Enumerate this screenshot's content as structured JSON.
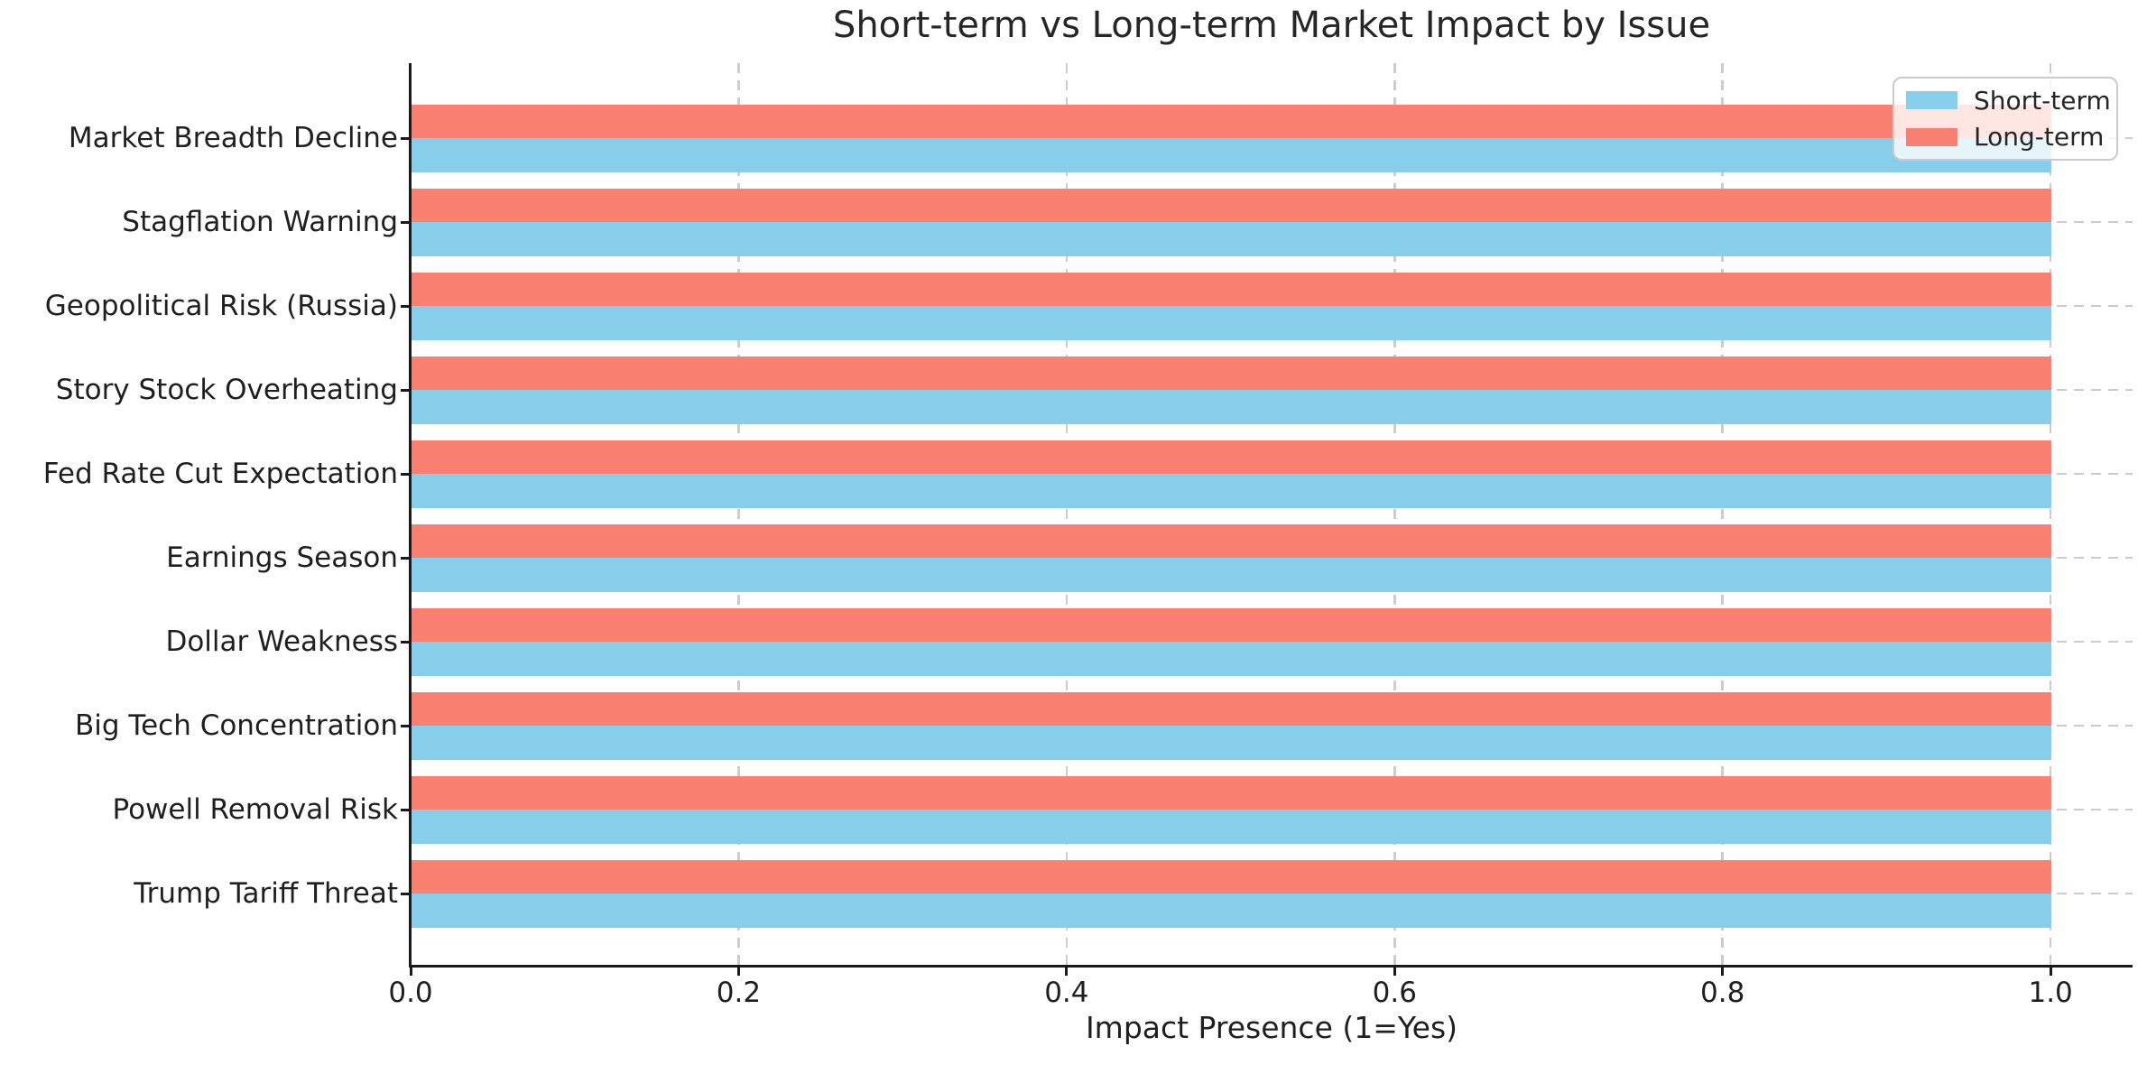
{
  "chart_data": {
    "type": "bar",
    "orientation": "horizontal",
    "title": "Short-term vs Long-term Market Impact by Issue",
    "xlabel": "Impact Presence (1=Yes)",
    "categories_top_to_bottom": [
      "Market Breadth Decline",
      "Stagflation Warning",
      "Geopolitical Risk (Russia)",
      "Story Stock Overheating",
      "Fed Rate Cut Expectation",
      "Earnings Season",
      "Dollar Weakness",
      "Big Tech Concentration",
      "Powell Removal Risk",
      "Trump Tariff Threat"
    ],
    "series": [
      {
        "name": "Short-term",
        "color": "#87CEEB",
        "values": [
          1.0,
          1.0,
          1.0,
          1.0,
          1.0,
          1.0,
          1.0,
          1.0,
          1.0,
          1.0
        ]
      },
      {
        "name": "Long-term",
        "color": "#FA8072",
        "values": [
          1.0,
          1.0,
          1.0,
          1.0,
          1.0,
          1.0,
          1.0,
          1.0,
          1.0,
          1.0
        ]
      }
    ],
    "x_ticks": [
      {
        "value": 0.0,
        "label": "0.0"
      },
      {
        "value": 0.2,
        "label": "0.2"
      },
      {
        "value": 0.4,
        "label": "0.4"
      },
      {
        "value": 0.6,
        "label": "0.6"
      },
      {
        "value": 0.8,
        "label": "0.8"
      },
      {
        "value": 1.0,
        "label": "1.0"
      }
    ],
    "xlim": [
      0,
      1.05
    ],
    "grid": {
      "visible": true,
      "style": "dashed",
      "color": "#cccccc",
      "axes": "both"
    },
    "legend": {
      "position": "upper-right",
      "entries": [
        "Short-term",
        "Long-term"
      ]
    }
  },
  "colors": {
    "background": "#ffffff",
    "text": "#262626",
    "axis": "#1a1a1a",
    "grid": "#cccccc",
    "short_term": "#87CEEB",
    "long_term": "#FA8072"
  }
}
